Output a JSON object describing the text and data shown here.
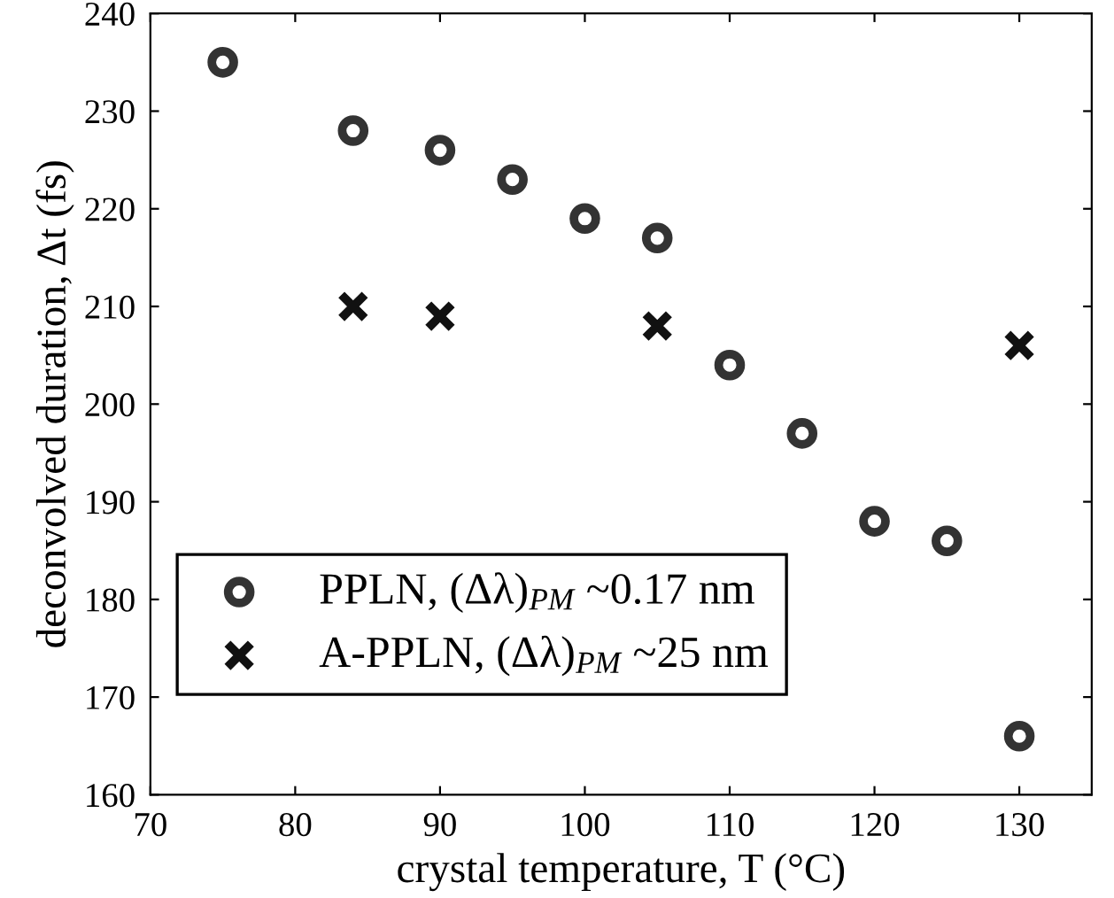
{
  "chart_data": {
    "type": "scatter",
    "xlabel": "crystal temperature, T (°C)",
    "ylabel": "deconvolved duration, Δt (fs)",
    "xlim": [
      70,
      135
    ],
    "xticks": [
      70,
      80,
      90,
      100,
      110,
      120,
      130
    ],
    "ylim": [
      160,
      240
    ],
    "yticks": [
      160,
      170,
      180,
      190,
      200,
      210,
      220,
      230,
      240
    ],
    "grid": false,
    "legend": "bottom left",
    "series": [
      {
        "name": "PPLN, (Δλ)$_{PM}$ ~0.17 nm",
        "color": "#333333",
        "marker": "circle",
        "x": [
          75,
          84,
          90,
          95,
          100,
          105,
          110,
          115,
          120,
          125,
          130
        ],
        "values": [
          235,
          228,
          226,
          223,
          219,
          217,
          204,
          197,
          188,
          186,
          166
        ]
      },
      {
        "name": "A-PPLN, (Δλ)$_{PM}$ ~25 nm",
        "color": "#111111",
        "marker": "cross",
        "x": [
          84,
          90,
          105,
          130
        ],
        "values": [
          210,
          209,
          208,
          206
        ]
      }
    ]
  }
}
